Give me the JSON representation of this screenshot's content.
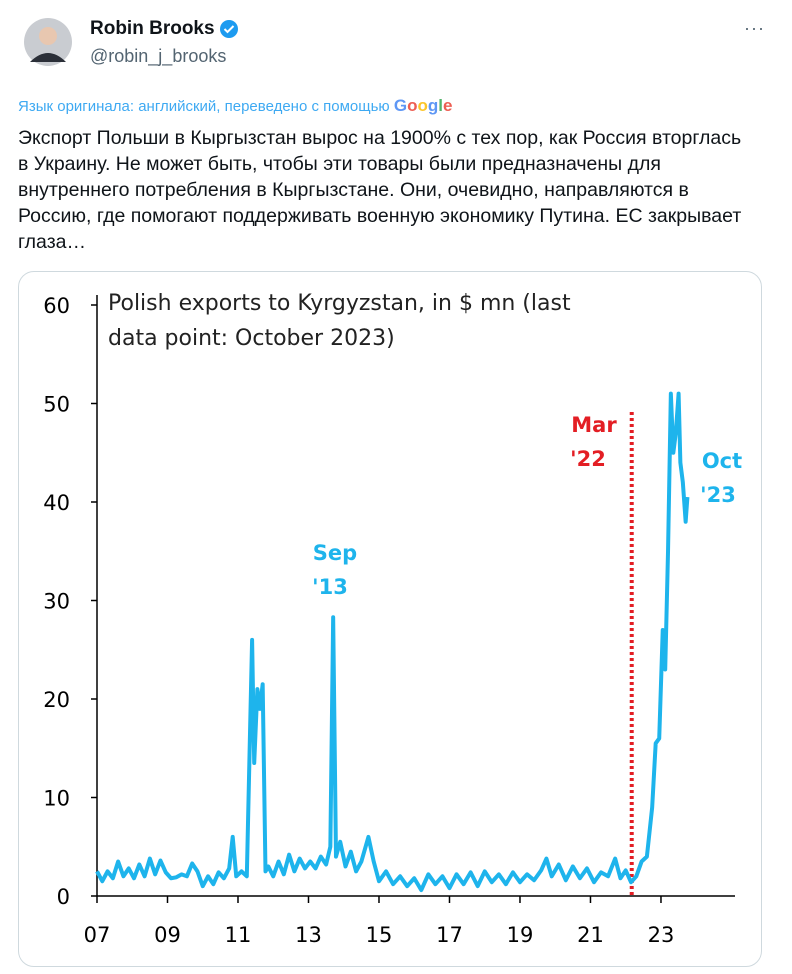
{
  "tweet": {
    "name": "Robin Brooks",
    "handle": "@robin_j_brooks",
    "translation_note": "Язык оригинала: английский, переведено с помощью",
    "translation_brand": "Google",
    "more": "···",
    "text": "Экспорт Польши в Кыргызстан вырос на 1900% с тех пор, как Россия вторглась в Украину. Не может быть, чтобы эти товары были предназначены для внутреннего потребления в Кыргызстане. Они, очевидно, направляются в Россию, где помогают поддерживать военную экономику Путина. ЕС закрывает глаза…"
  },
  "chart_data": {
    "type": "line",
    "title": [
      "Polish exports to Kyrgyzstan, in $ mn (last",
      "data point: October 2023)"
    ],
    "x": [
      2007.0,
      2007.15,
      2007.3,
      2007.45,
      2007.6,
      2007.75,
      2007.9,
      2008.05,
      2008.2,
      2008.35,
      2008.5,
      2008.65,
      2008.8,
      2008.95,
      2009.1,
      2009.25,
      2009.4,
      2009.55,
      2009.7,
      2009.85,
      2010.0,
      2010.15,
      2010.3,
      2010.45,
      2010.6,
      2010.75,
      2010.85,
      2010.95,
      2011.1,
      2011.25,
      2011.4,
      2011.46,
      2011.55,
      2011.62,
      2011.7,
      2011.78,
      2011.86,
      2012.0,
      2012.15,
      2012.3,
      2012.45,
      2012.6,
      2012.75,
      2012.9,
      2013.05,
      2013.2,
      2013.35,
      2013.5,
      2013.62,
      2013.7,
      2013.78,
      2013.9,
      2014.05,
      2014.2,
      2014.35,
      2014.5,
      2014.7,
      2014.85,
      2015.0,
      2015.2,
      2015.4,
      2015.6,
      2015.8,
      2016.0,
      2016.2,
      2016.4,
      2016.6,
      2016.8,
      2017.0,
      2017.2,
      2017.4,
      2017.6,
      2017.8,
      2018.0,
      2018.2,
      2018.4,
      2018.6,
      2018.8,
      2019.0,
      2019.2,
      2019.4,
      2019.6,
      2019.75,
      2019.9,
      2020.1,
      2020.3,
      2020.5,
      2020.7,
      2020.9,
      2021.1,
      2021.3,
      2021.5,
      2021.7,
      2021.85,
      2022.0,
      2022.15,
      2022.3,
      2022.45,
      2022.6,
      2022.75,
      2022.85,
      2022.95,
      2023.05,
      2023.12,
      2023.2,
      2023.28,
      2023.35,
      2023.42,
      2023.5,
      2023.55,
      2023.62,
      2023.7,
      2023.75
    ],
    "series": [
      {
        "name": "Polish exports to Kyrgyzstan",
        "color": "#1eb4ec",
        "values": [
          2.5,
          1.5,
          2.5,
          1.8,
          3.5,
          2.0,
          2.8,
          1.8,
          3.2,
          2.0,
          3.8,
          2.2,
          3.6,
          2.4,
          1.8,
          1.9,
          2.2,
          2.0,
          3.3,
          2.5,
          1.0,
          2.0,
          1.2,
          2.4,
          1.8,
          2.8,
          6.0,
          2.0,
          2.5,
          2.0,
          26.0,
          13.5,
          21.0,
          19.0,
          21.5,
          2.5,
          3.0,
          2.0,
          3.5,
          2.2,
          4.2,
          2.5,
          3.8,
          2.8,
          3.5,
          2.8,
          4.0,
          3.2,
          5.0,
          28.3,
          4.0,
          5.5,
          3.0,
          4.5,
          2.5,
          3.5,
          6.0,
          3.5,
          1.5,
          2.5,
          1.2,
          2.0,
          1.0,
          1.8,
          0.6,
          2.2,
          1.2,
          2.0,
          0.8,
          2.2,
          1.2,
          2.4,
          1.0,
          2.5,
          1.4,
          2.2,
          1.2,
          2.4,
          1.4,
          2.2,
          1.6,
          2.6,
          3.8,
          2.0,
          3.2,
          1.6,
          3.0,
          1.8,
          2.8,
          1.4,
          2.4,
          2.0,
          3.8,
          1.8,
          2.6,
          1.4,
          2.0,
          3.5,
          4.0,
          9.0,
          15.5,
          16.0,
          27.0,
          23.0,
          35.0,
          51.0,
          45.0,
          47.0,
          51.0,
          44.0,
          42.0,
          38.0,
          40.5
        ]
      }
    ],
    "xlim": [
      2007,
      2025.1
    ],
    "xticks": [
      {
        "value": 2007,
        "label": "07"
      },
      {
        "value": 2009,
        "label": "09"
      },
      {
        "value": 2011,
        "label": "11"
      },
      {
        "value": 2013,
        "label": "13"
      },
      {
        "value": 2015,
        "label": "15"
      },
      {
        "value": 2017,
        "label": "17"
      },
      {
        "value": 2019,
        "label": "19"
      },
      {
        "value": 2021,
        "label": "21"
      },
      {
        "value": 2023,
        "label": "23"
      }
    ],
    "ylim": [
      0,
      60
    ],
    "yticks": [
      0,
      10,
      20,
      30,
      40,
      50,
      60
    ],
    "grid": false,
    "event_line": {
      "x": 2022.17,
      "color": "#e31e24"
    },
    "annotations": [
      {
        "lines": [
          "Sep",
          "'13"
        ],
        "color": "#1eb4ec"
      },
      {
        "lines": [
          "Mar",
          "'22"
        ],
        "color": "#e31e24"
      },
      {
        "lines": [
          "Oct",
          "'23"
        ],
        "color": "#1eb4ec"
      }
    ]
  }
}
